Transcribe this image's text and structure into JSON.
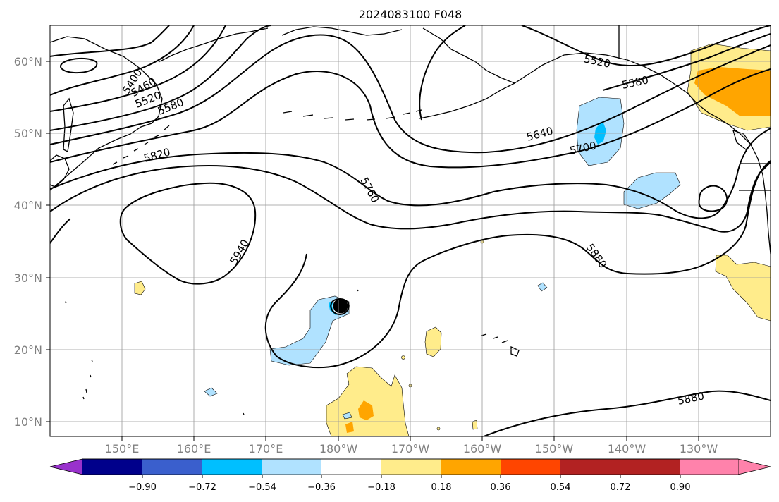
{
  "title": "2024083100 F048",
  "lat_labels": [
    "60°N",
    "50°N",
    "40°N",
    "30°N",
    "20°N",
    "10°N"
  ],
  "lon_labels": [
    "150°E",
    "160°E",
    "170°E",
    "180°W",
    "170°W",
    "160°W",
    "150°W",
    "140°W",
    "130°W"
  ],
  "contour_labels": [
    "5400",
    "5460",
    "5520",
    "5580",
    "5820",
    "5940",
    "5760",
    "5520",
    "5580",
    "5640",
    "5700",
    "5880",
    "5880"
  ],
  "colorbar": {
    "colors": [
      "#9932cc",
      "#00008b",
      "#3a5fcd",
      "#00bfff",
      "#b0e2ff",
      "#ffffff",
      "#ffec8b",
      "#ffa500",
      "#ff4500",
      "#b22222",
      "#ff82ab"
    ],
    "labels": [
      "−0.90",
      "−0.72",
      "−0.54",
      "−0.36",
      "−0.18",
      "0.18",
      "0.36",
      "0.54",
      "0.72",
      "0.90"
    ]
  }
}
